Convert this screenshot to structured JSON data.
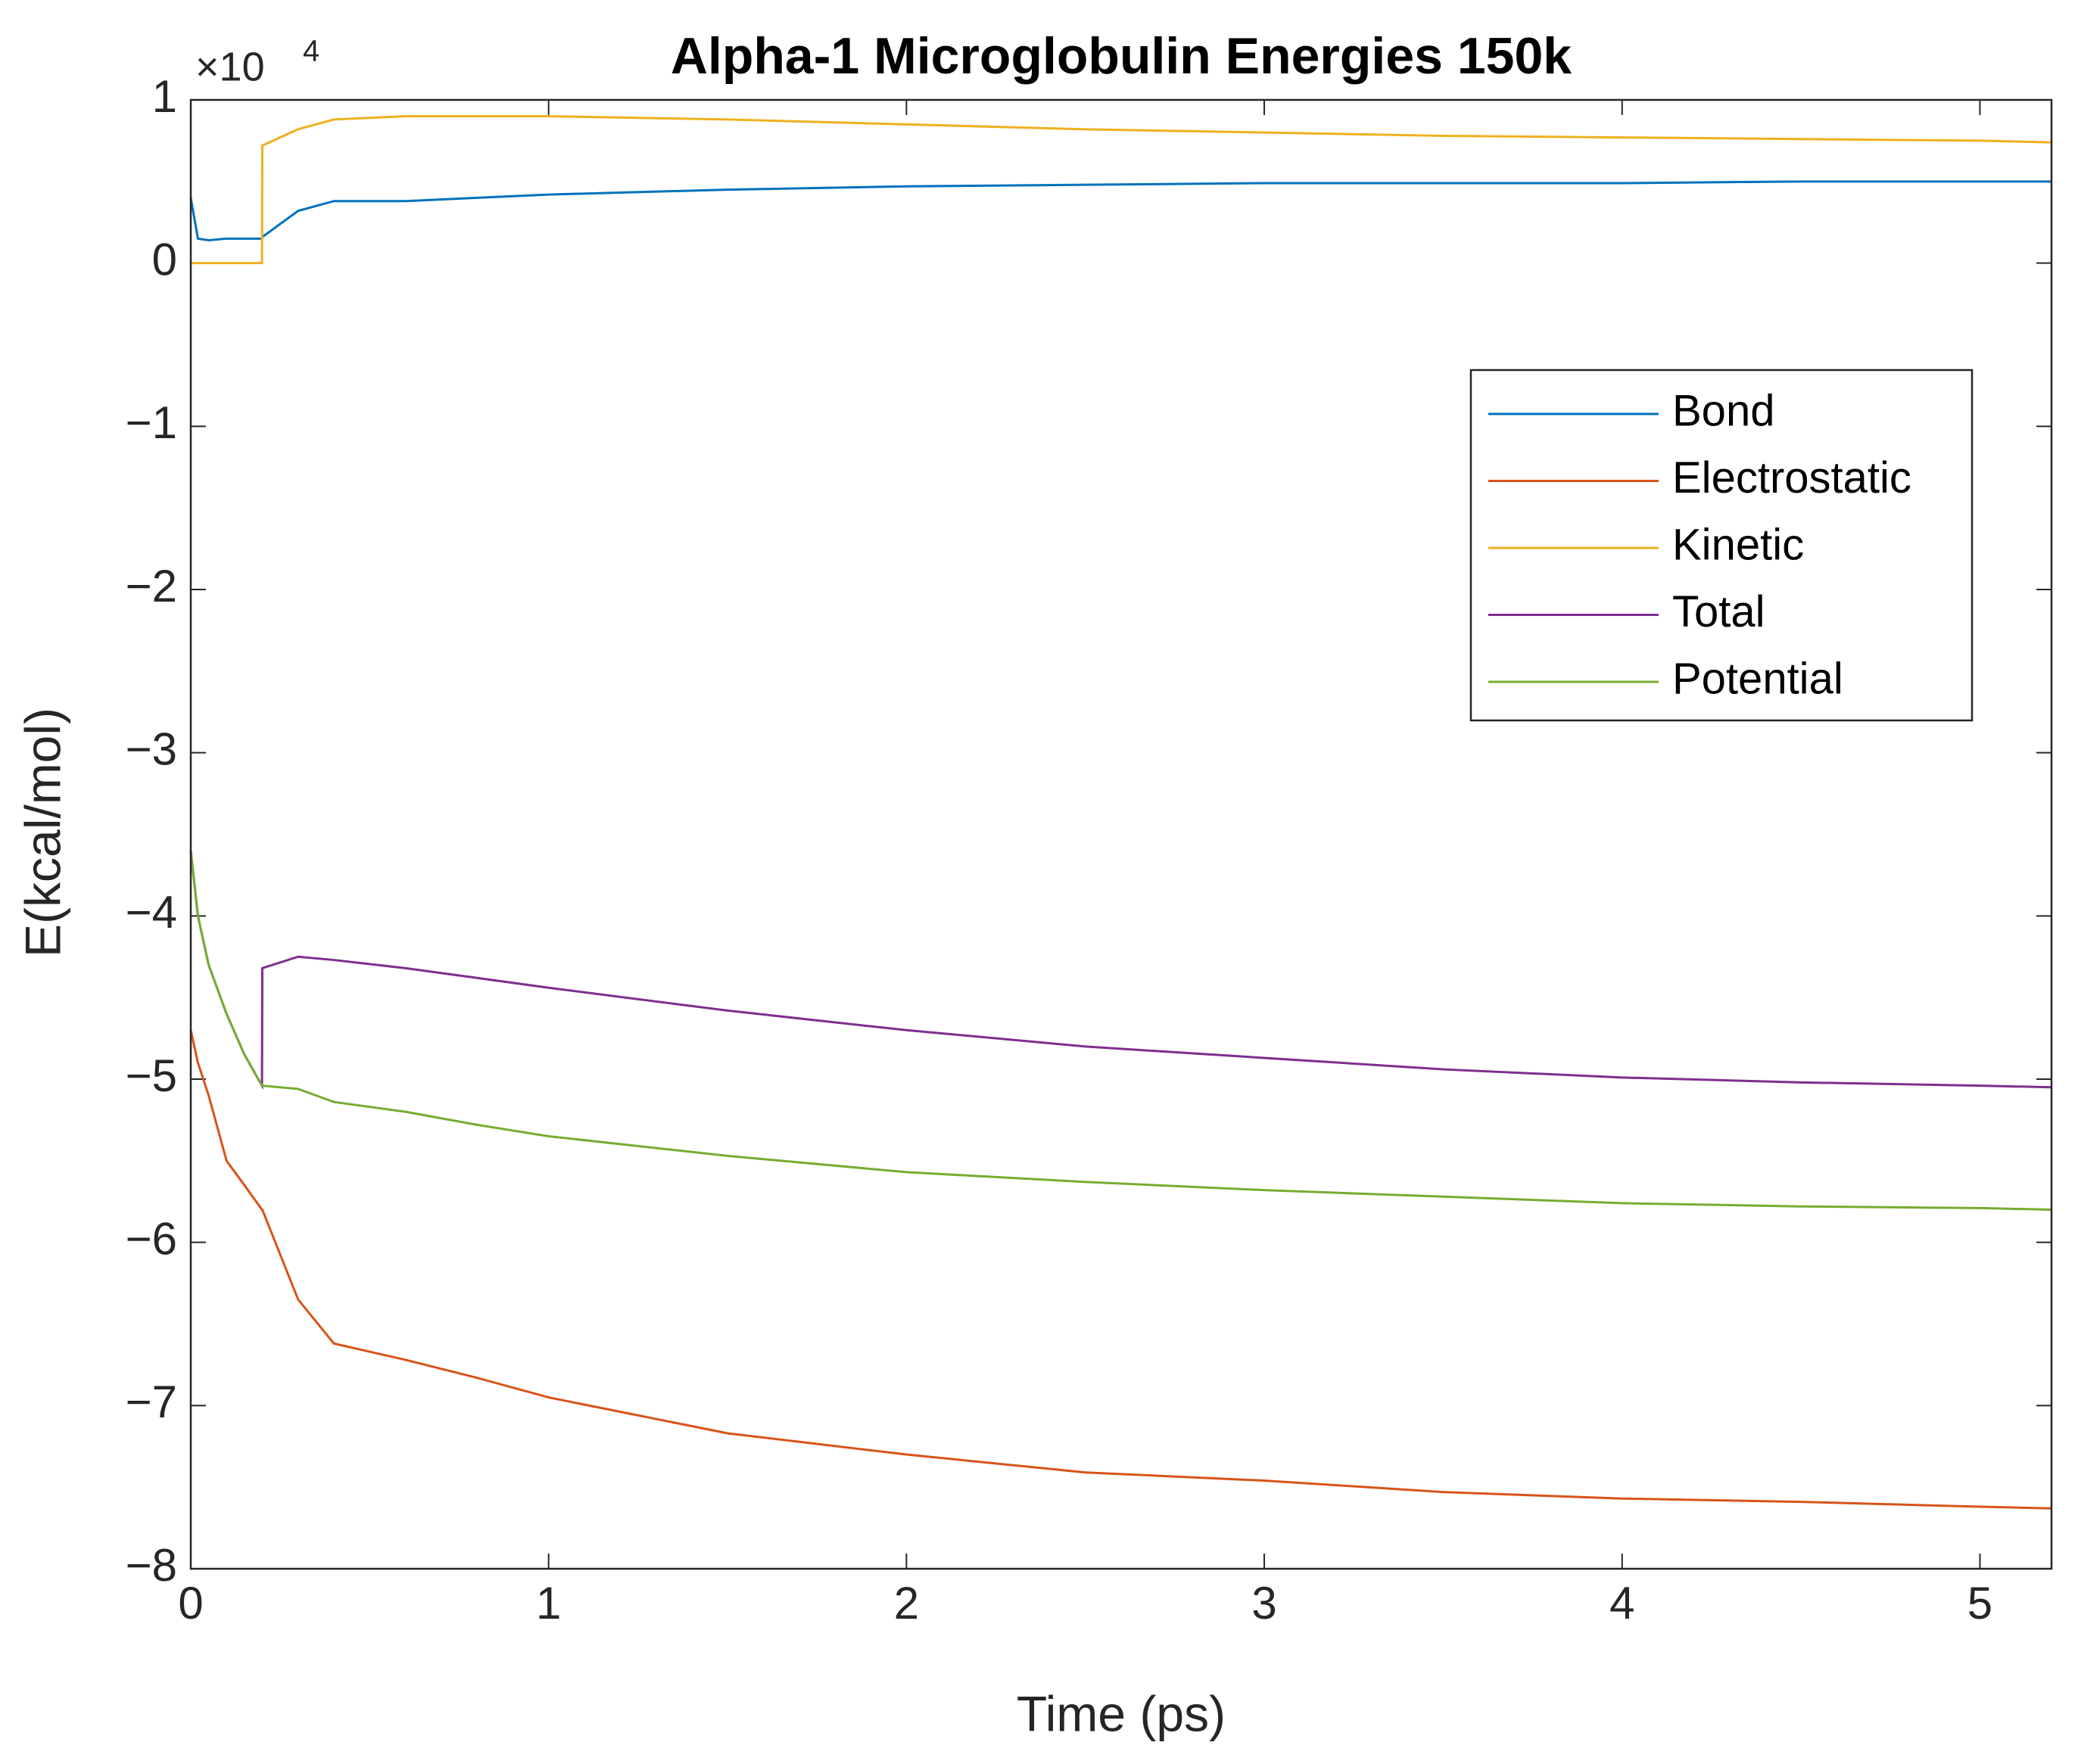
{
  "chart_data": {
    "type": "line",
    "title": "Alpha-1 Microglobulin Energies 150k",
    "x_label": "Time (ps)",
    "y_label": "E(kcal/mol)",
    "y_multiplier": "×10",
    "y_multiplier_exponent": "4",
    "x": [
      0,
      0.02,
      0.05,
      0.1,
      0.15,
      0.199,
      0.2,
      0.3,
      0.4,
      0.6,
      0.8,
      1.0,
      1.5,
      2.0,
      2.5,
      3.0,
      3.5,
      4.0,
      4.5,
      5.0,
      5.2
    ],
    "series": [
      {
        "name": "Bond",
        "color": "#0072BD",
        "values": [
          0.4,
          0.15,
          0.14,
          0.15,
          0.15,
          0.15,
          0.16,
          0.32,
          0.38,
          0.38,
          0.4,
          0.42,
          0.45,
          0.47,
          0.48,
          0.49,
          0.49,
          0.49,
          0.5,
          0.5,
          0.5
        ]
      },
      {
        "name": "Electrostatic",
        "color": "#D95319",
        "values": [
          -4.7,
          -4.9,
          -5.1,
          -5.5,
          -5.65,
          -5.8,
          -5.8,
          -6.35,
          -6.62,
          -6.72,
          -6.83,
          -6.95,
          -7.17,
          -7.3,
          -7.41,
          -7.46,
          -7.53,
          -7.57,
          -7.59,
          -7.62,
          -7.63
        ]
      },
      {
        "name": "Kinetic",
        "color": "#EDB120",
        "values": [
          0,
          0,
          0,
          0,
          0,
          0,
          0.72,
          0.82,
          0.88,
          0.9,
          0.9,
          0.9,
          0.88,
          0.85,
          0.82,
          0.8,
          0.78,
          0.77,
          0.76,
          0.75,
          0.74
        ]
      },
      {
        "name": "Total",
        "color": "#7E2F8E",
        "values": [
          -3.6,
          -4.0,
          -4.3,
          -4.6,
          -4.85,
          -5.04,
          -4.32,
          -4.25,
          -4.27,
          -4.32,
          -4.38,
          -4.44,
          -4.58,
          -4.7,
          -4.8,
          -4.87,
          -4.94,
          -4.99,
          -5.02,
          -5.04,
          -5.05
        ]
      },
      {
        "name": "Potential",
        "color": "#77AC30",
        "values": [
          -3.6,
          -4.0,
          -4.3,
          -4.6,
          -4.85,
          -5.04,
          -5.04,
          -5.06,
          -5.14,
          -5.2,
          -5.28,
          -5.35,
          -5.47,
          -5.57,
          -5.63,
          -5.68,
          -5.72,
          -5.76,
          -5.78,
          -5.79,
          -5.8
        ]
      }
    ],
    "xlim": [
      0,
      5.2
    ],
    "xticks": [
      0,
      1,
      2,
      3,
      4,
      5
    ],
    "ylim": [
      -8,
      1
    ],
    "yticks": [
      1,
      0,
      {
        "value": -1,
        "label": "−1"
      },
      {
        "value": -2,
        "label": "−2"
      },
      {
        "value": -3,
        "label": "−3"
      },
      {
        "value": -4,
        "label": "−4"
      },
      {
        "value": -5,
        "label": "−5"
      },
      {
        "value": -6,
        "label": "−6"
      },
      {
        "value": -7,
        "label": "−7"
      },
      {
        "value": -8,
        "label": "−8"
      }
    ],
    "grid": false,
    "legend": "upper right"
  }
}
